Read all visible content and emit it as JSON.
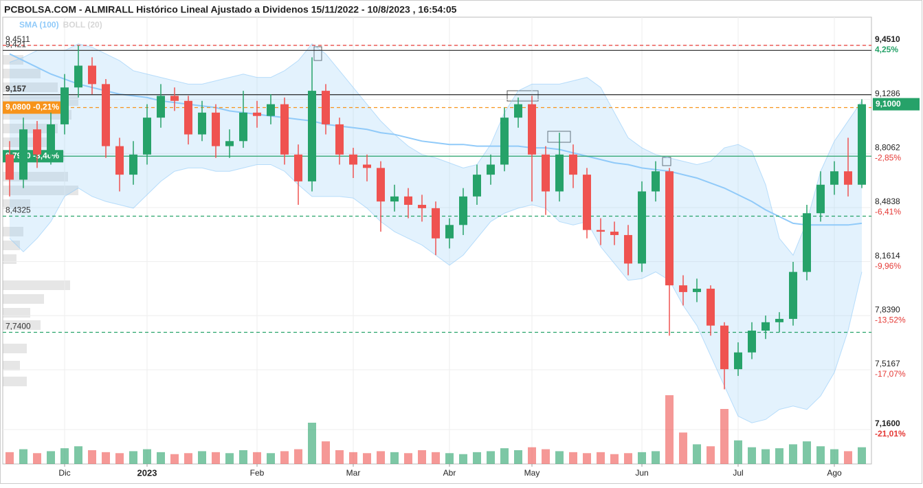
{
  "chart_data": {
    "type": "candlestick",
    "title": "PCBOLSA.COM - ALMIRALL Histórico Lineal Ajustado a Dividenos 15/11/2022 - 10/8/2023 , 16:54:05",
    "indicators": [
      {
        "name": "SMA (100)",
        "color": "#90caf9"
      },
      {
        "name": "BOLL (20)",
        "color": "#d6d6d6"
      }
    ],
    "categories": [
      null,
      null,
      null,
      null,
      "Dic",
      null,
      null,
      null,
      null,
      null,
      "2023",
      null,
      null,
      null,
      null,
      null,
      null,
      null,
      "Feb",
      null,
      null,
      null,
      null,
      null,
      null,
      "Mar",
      null,
      null,
      null,
      null,
      null,
      null,
      "Abr",
      null,
      null,
      null,
      null,
      null,
      "May",
      null,
      null,
      null,
      null,
      null,
      null,
      null,
      "Jun",
      null,
      null,
      null,
      null,
      null,
      null,
      "Jul",
      null,
      null,
      null,
      null,
      null,
      null,
      "Ago",
      null,
      null
    ],
    "open": [
      8.8,
      8.65,
      8.95,
      8.8,
      8.98,
      9.2,
      9.33,
      9.22,
      8.85,
      8.68,
      8.8,
      9.02,
      9.15,
      9.12,
      8.92,
      9.05,
      8.85,
      8.88,
      9.05,
      9.03,
      9.1,
      8.8,
      8.64,
      9.18,
      8.98,
      8.8,
      8.74,
      8.72,
      8.52,
      8.55,
      8.5,
      8.48,
      8.3,
      8.38,
      8.55,
      8.68,
      8.74,
      9.02,
      9.1,
      8.8,
      8.58,
      8.8,
      8.68,
      8.35,
      8.34,
      8.32,
      8.15,
      8.58,
      8.7,
      8.02,
      7.98,
      8.0,
      7.78,
      7.52,
      7.62,
      7.75,
      7.8,
      7.82,
      8.1,
      8.45,
      8.62,
      8.7,
      8.62
    ],
    "high": [
      8.88,
      9.02,
      9.0,
      9.05,
      9.28,
      9.45,
      9.38,
      9.25,
      8.9,
      8.88,
      9.1,
      9.22,
      9.2,
      9.15,
      9.12,
      9.1,
      8.95,
      9.18,
      9.12,
      9.16,
      9.14,
      8.86,
      9.38,
      9.22,
      9.02,
      8.84,
      8.8,
      8.76,
      8.62,
      8.6,
      8.56,
      8.52,
      8.42,
      8.6,
      8.74,
      8.8,
      9.08,
      9.14,
      9.15,
      8.85,
      8.93,
      8.86,
      8.72,
      8.42,
      8.4,
      8.38,
      8.64,
      8.76,
      8.72,
      8.08,
      8.06,
      8.02,
      7.8,
      7.68,
      7.8,
      7.84,
      7.86,
      8.16,
      8.5,
      8.7,
      8.76,
      8.9,
      9.13
    ],
    "low": [
      8.55,
      8.6,
      8.72,
      8.74,
      8.92,
      9.14,
      9.16,
      8.78,
      8.58,
      8.62,
      8.74,
      8.96,
      9.06,
      8.86,
      8.88,
      8.78,
      8.78,
      8.84,
      8.96,
      8.98,
      8.74,
      8.5,
      8.58,
      8.92,
      8.74,
      8.66,
      8.64,
      8.34,
      8.46,
      8.42,
      8.4,
      8.2,
      8.24,
      8.32,
      8.5,
      8.62,
      8.7,
      8.96,
      8.52,
      8.44,
      8.52,
      8.6,
      8.3,
      8.26,
      8.26,
      8.08,
      8.1,
      8.52,
      7.72,
      7.9,
      7.92,
      7.72,
      7.4,
      7.48,
      7.58,
      7.7,
      7.74,
      7.78,
      8.05,
      8.4,
      8.56,
      8.55,
      8.6
    ],
    "close": [
      8.65,
      8.95,
      8.8,
      8.98,
      9.2,
      9.33,
      9.22,
      8.85,
      8.68,
      8.8,
      9.02,
      9.15,
      9.12,
      8.92,
      9.05,
      8.85,
      8.88,
      9.05,
      9.03,
      9.1,
      8.8,
      8.64,
      9.18,
      8.98,
      8.8,
      8.74,
      8.72,
      8.52,
      8.55,
      8.5,
      8.48,
      8.3,
      8.38,
      8.55,
      8.68,
      8.74,
      9.02,
      9.1,
      8.8,
      8.58,
      8.8,
      8.68,
      8.35,
      8.34,
      8.32,
      8.15,
      8.58,
      8.7,
      8.02,
      7.98,
      8.0,
      7.78,
      7.52,
      7.62,
      7.75,
      7.8,
      7.82,
      8.1,
      8.45,
      8.62,
      8.7,
      8.62,
      9.1
    ],
    "volume": [
      120,
      150,
      110,
      130,
      160,
      180,
      140,
      120,
      110,
      130,
      150,
      120,
      100,
      110,
      130,
      120,
      110,
      140,
      120,
      110,
      130,
      150,
      420,
      230,
      140,
      120,
      110,
      130,
      120,
      110,
      140,
      120,
      110,
      100,
      120,
      130,
      160,
      140,
      170,
      150,
      130,
      120,
      110,
      120,
      100,
      110,
      120,
      130,
      700,
      320,
      200,
      180,
      560,
      240,
      170,
      150,
      160,
      200,
      230,
      180,
      150,
      130,
      170
    ],
    "sma": [
      9.4,
      9.36,
      9.32,
      9.28,
      9.25,
      9.22,
      9.2,
      9.18,
      9.16,
      9.15,
      9.14,
      9.12,
      9.11,
      9.1,
      9.09,
      9.08,
      9.06,
      9.05,
      9.04,
      9.03,
      9.02,
      9.01,
      9.0,
      8.98,
      8.97,
      8.96,
      8.95,
      8.93,
      8.92,
      8.9,
      8.88,
      8.87,
      8.86,
      8.86,
      8.85,
      8.85,
      8.85,
      8.85,
      8.84,
      8.84,
      8.83,
      8.81,
      8.79,
      8.77,
      8.75,
      8.74,
      8.72,
      8.71,
      8.7,
      8.68,
      8.66,
      8.63,
      8.6,
      8.56,
      8.52,
      8.47,
      8.43,
      8.39,
      8.38,
      8.38,
      8.38,
      8.38,
      8.39
    ],
    "boll_upper": [
      9.35,
      9.38,
      9.42,
      9.42,
      9.42,
      9.46,
      9.44,
      9.4,
      9.36,
      9.3,
      9.28,
      9.26,
      9.24,
      9.22,
      9.22,
      9.24,
      9.26,
      9.28,
      9.26,
      9.26,
      9.3,
      9.36,
      9.46,
      9.4,
      9.3,
      9.2,
      9.1,
      9.0,
      8.92,
      8.85,
      8.8,
      8.78,
      8.75,
      8.72,
      8.74,
      8.86,
      9.05,
      9.18,
      9.22,
      9.22,
      9.22,
      9.24,
      9.26,
      9.2,
      9.05,
      8.9,
      8.84,
      8.8,
      8.78,
      8.76,
      8.74,
      8.76,
      8.84,
      8.86,
      8.82,
      8.62,
      8.3,
      8.2,
      8.4,
      8.7,
      8.88,
      9.0,
      9.12
    ],
    "boll_lower": [
      8.3,
      8.22,
      8.3,
      8.4,
      8.55,
      8.6,
      8.55,
      8.52,
      8.5,
      8.48,
      8.56,
      8.64,
      8.7,
      8.72,
      8.72,
      8.7,
      8.7,
      8.72,
      8.74,
      8.74,
      8.7,
      8.62,
      8.55,
      8.55,
      8.55,
      8.54,
      8.48,
      8.4,
      8.34,
      8.3,
      8.26,
      8.2,
      8.14,
      8.2,
      8.3,
      8.4,
      8.45,
      8.48,
      8.5,
      8.48,
      8.4,
      8.38,
      8.4,
      8.25,
      8.15,
      8.05,
      8.06,
      8.1,
      8.05,
      7.9,
      7.78,
      7.6,
      7.42,
      7.24,
      7.2,
      7.22,
      7.28,
      7.3,
      7.28,
      7.36,
      7.5,
      7.75,
      8.1
    ],
    "up_color": "#26a269",
    "down_color": "#ef5350",
    "ylim": [
      6.955,
      9.619
    ],
    "yticks": [
      {
        "value": 9.451,
        "label": "9,4510",
        "pct": "4,25%"
      },
      {
        "value": 9.1286,
        "label": "9,1286"
      },
      {
        "value": 8.8062,
        "label": "8,8062",
        "pct": "-2,85%"
      },
      {
        "value": 8.4838,
        "label": "8,4838",
        "pct": "-6,41%"
      },
      {
        "value": 8.1614,
        "label": "8,1614",
        "pct": "-9,96%"
      },
      {
        "value": 7.839,
        "label": "7,8390",
        "pct": "-13,52%"
      },
      {
        "value": 7.5167,
        "label": "7,5167",
        "pct": "-17,07%"
      },
      {
        "value": 7.16,
        "label": "7,1600",
        "pct": "-21,01%"
      }
    ],
    "levels": [
      {
        "value": 9.4511,
        "label": "9,4511",
        "color": "#e53935",
        "dashed": true
      },
      {
        "value": 9.421,
        "label": "9,421",
        "color": "#222222"
      },
      {
        "value": 9.157,
        "label": "9,157",
        "color": "#222222"
      },
      {
        "value": 9.08,
        "label": "9,0800 -0,21%",
        "color": "#f7931a",
        "dashed": true,
        "boxed": true
      },
      {
        "value": 8.79,
        "label": "8,7900 -3,40%",
        "color": "#26a269",
        "boxed": true
      },
      {
        "value": 8.4325,
        "label": "8,4325",
        "color": "#26a269",
        "dashed": true
      },
      {
        "value": 7.74,
        "label": "7,7400",
        "color": "#26a269",
        "dashed": true
      }
    ],
    "last_price": {
      "value": 9.1,
      "label": "9,1000",
      "color": "#26a269"
    },
    "grid": true
  }
}
